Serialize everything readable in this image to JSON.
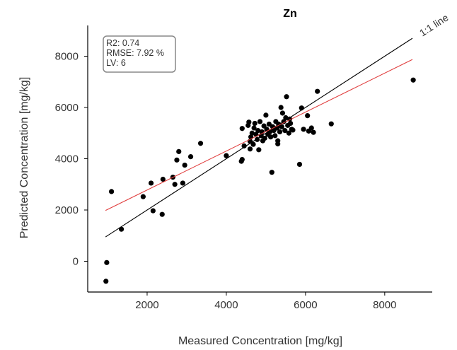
{
  "chart_data": {
    "type": "scatter",
    "title": "Zn",
    "xlabel": "Measured Concentration [mg/kg]",
    "ylabel": "Predicted Concentration [mg/kg]",
    "xlim": [
      500,
      9200
    ],
    "ylim": [
      -1200,
      9200
    ],
    "xticks": [
      2000,
      4000,
      6000,
      8000
    ],
    "yticks": [
      0,
      2000,
      4000,
      6000,
      8000
    ],
    "grid": false,
    "stats": [
      "R2: 0.74",
      "RMSE: 7.92 %",
      "LV:  6"
    ],
    "identity_line": {
      "label": "1:1 line",
      "color": "#000000",
      "x_range": [
        950,
        8700
      ]
    },
    "fit_line": {
      "color": "#e03c3c",
      "intercept": 1260,
      "slope": 0.76,
      "x_range": [
        950,
        8700
      ]
    },
    "point_color": "#000000",
    "points": [
      [
        960,
        -780
      ],
      [
        980,
        -50
      ],
      [
        1100,
        2720
      ],
      [
        1350,
        1250
      ],
      [
        1900,
        2520
      ],
      [
        2100,
        3050
      ],
      [
        2150,
        1970
      ],
      [
        2380,
        1830
      ],
      [
        2400,
        3200
      ],
      [
        2650,
        3280
      ],
      [
        2700,
        3000
      ],
      [
        2750,
        3950
      ],
      [
        2800,
        4280
      ],
      [
        2900,
        3050
      ],
      [
        2950,
        3750
      ],
      [
        3100,
        4080
      ],
      [
        3350,
        4600
      ],
      [
        4000,
        4120
      ],
      [
        4380,
        3900
      ],
      [
        4400,
        3970
      ],
      [
        4400,
        5180
      ],
      [
        4450,
        4500
      ],
      [
        4550,
        5300
      ],
      [
        4570,
        5430
      ],
      [
        4600,
        4380
      ],
      [
        4600,
        4680
      ],
      [
        4620,
        4850
      ],
      [
        4650,
        5000
      ],
      [
        4680,
        4560
      ],
      [
        4700,
        5200
      ],
      [
        4720,
        5380
      ],
      [
        4750,
        4950
      ],
      [
        4780,
        4750
      ],
      [
        4800,
        5100
      ],
      [
        4820,
        4350
      ],
      [
        4850,
        5450
      ],
      [
        4880,
        4900
      ],
      [
        4900,
        5050
      ],
      [
        4920,
        4700
      ],
      [
        4950,
        5280
      ],
      [
        4970,
        4800
      ],
      [
        5000,
        5700
      ],
      [
        5020,
        5150
      ],
      [
        5050,
        4950
      ],
      [
        5080,
        5350
      ],
      [
        5100,
        5050
      ],
      [
        5120,
        4850
      ],
      [
        5150,
        3470
      ],
      [
        5170,
        5250
      ],
      [
        5200,
        5100
      ],
      [
        5230,
        4900
      ],
      [
        5250,
        5450
      ],
      [
        5280,
        5200
      ],
      [
        5300,
        4580
      ],
      [
        5300,
        4700
      ],
      [
        5320,
        5350
      ],
      [
        5350,
        5050
      ],
      [
        5380,
        6000
      ],
      [
        5400,
        5250
      ],
      [
        5420,
        5780
      ],
      [
        5450,
        5450
      ],
      [
        5480,
        5100
      ],
      [
        5500,
        5600
      ],
      [
        5520,
        6420
      ],
      [
        5550,
        5300
      ],
      [
        5580,
        5000
      ],
      [
        5600,
        5550
      ],
      [
        5620,
        5380
      ],
      [
        5650,
        5150
      ],
      [
        5680,
        5120
      ],
      [
        5850,
        3780
      ],
      [
        5900,
        5980
      ],
      [
        5950,
        5150
      ],
      [
        6050,
        5680
      ],
      [
        6080,
        5080
      ],
      [
        6150,
        5200
      ],
      [
        6200,
        5030
      ],
      [
        6300,
        6630
      ],
      [
        6650,
        5360
      ],
      [
        8720,
        7070
      ]
    ]
  }
}
